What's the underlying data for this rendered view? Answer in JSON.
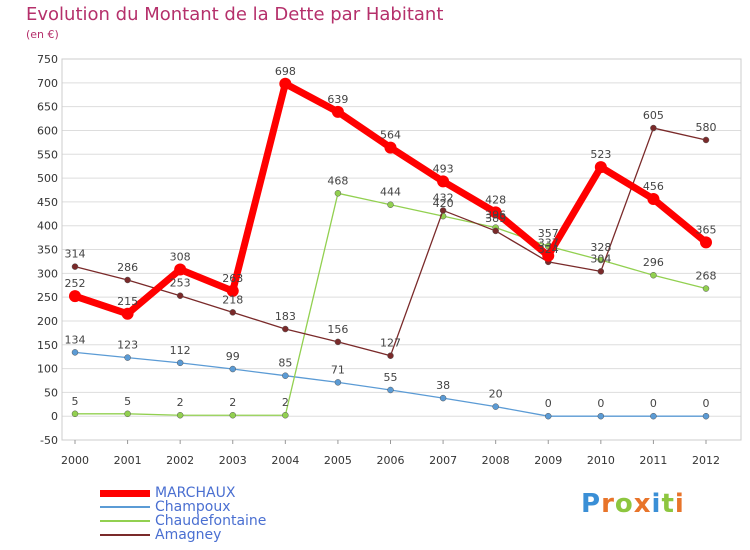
{
  "header": {
    "title": "Evolution du Montant de la Dette par Habitant",
    "subtitle": "(en €)"
  },
  "logo": {
    "letters": [
      "P",
      "r",
      "o",
      "x",
      "i",
      "t",
      "i"
    ],
    "colors": [
      "#3a8fd6",
      "#e8742a",
      "#8dc63f",
      "#e8742a",
      "#3a8fd6",
      "#8dc63f",
      "#e8742a"
    ]
  },
  "chart_data": {
    "type": "line",
    "title": "Evolution du Montant de la Dette par Habitant",
    "subtitle": "(en €)",
    "xlabel": "",
    "ylabel": "",
    "ylim": [
      -50,
      750
    ],
    "yticks": [
      "750",
      "700",
      "650",
      "600",
      "550",
      "500",
      "450",
      "400",
      "350",
      "300",
      "250",
      "200",
      "150",
      "100",
      "50",
      "0",
      "-50"
    ],
    "x": [
      "2000",
      "2001",
      "2002",
      "2003",
      "2004",
      "2005",
      "2006",
      "2007",
      "2008",
      "2009",
      "2010",
      "2011",
      "2012"
    ],
    "grid": "horizontal",
    "legend_position": "bottom-left",
    "series": [
      {
        "name": "MARCHAUX",
        "color": "#ff0000",
        "values": [
          252,
          215,
          308,
          263,
          698,
          639,
          564,
          493,
          428,
          337,
          523,
          456,
          365
        ],
        "labels": [
          "252",
          "215",
          "308",
          "263",
          "698",
          "639",
          "564",
          "493",
          "428",
          "337",
          "523",
          "456",
          "365"
        ]
      },
      {
        "name": "Champoux",
        "color": "#5b9bd5",
        "values": [
          134,
          123,
          112,
          99,
          85,
          71,
          55,
          38,
          20,
          0,
          0,
          0,
          0
        ],
        "labels": [
          "134",
          "123",
          "112",
          "99",
          "85",
          "71",
          "55",
          "38",
          "20",
          "0",
          "0",
          "0",
          "0"
        ]
      },
      {
        "name": "Chaudefontaine",
        "color": "#92d050",
        "values": [
          5,
          5,
          2,
          2,
          2,
          468,
          444,
          420,
          396,
          357,
          328,
          296,
          268
        ],
        "labels": [
          "5",
          "5",
          "2",
          "2",
          "2",
          "468",
          "444",
          "420",
          "396",
          "357",
          "328",
          "296",
          "268"
        ]
      },
      {
        "name": "Amagney",
        "color": "#7a2a2a",
        "values": [
          314,
          286,
          253,
          218,
          183,
          156,
          127,
          432,
          389,
          324,
          304,
          605,
          580
        ],
        "labels": [
          "314",
          "286",
          "253",
          "218",
          "183",
          "156",
          "127",
          "432",
          "389",
          "324",
          "304",
          "605",
          "580"
        ]
      }
    ]
  }
}
